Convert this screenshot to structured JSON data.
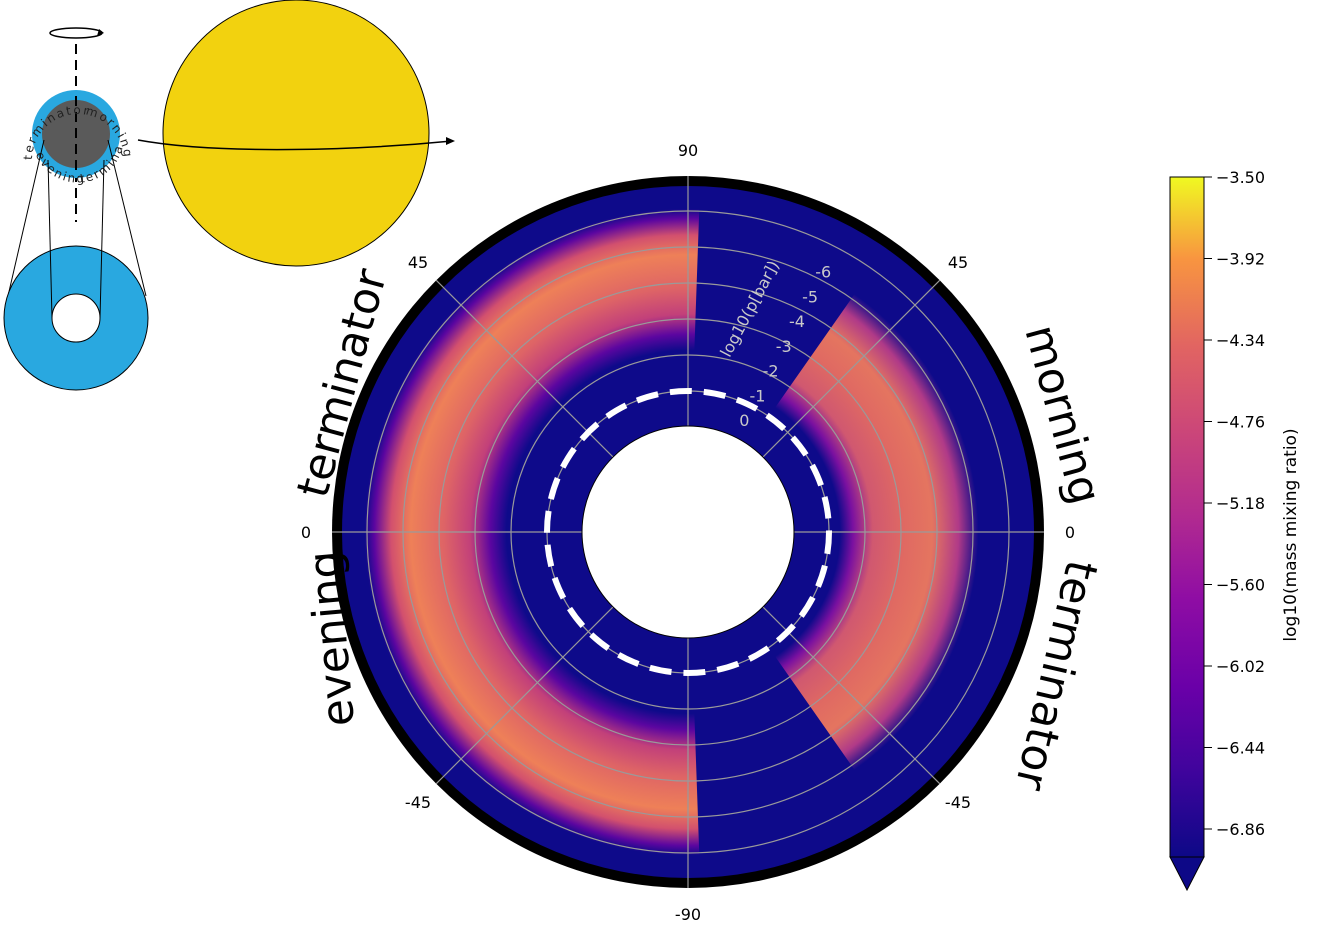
{
  "chart_data": {
    "type": "heatmap",
    "projection": "polar",
    "angle_ticks": [
      "90",
      "45",
      "45",
      "0",
      "0",
      "-45",
      "-45",
      "-90"
    ],
    "radial_axis_label": "log10(p[bar])",
    "radial_ticks": [
      "0",
      "-1",
      "-2",
      "-3",
      "-4",
      "-5",
      "-6"
    ],
    "side_labels": {
      "upper_left": "terminator",
      "lower_left": "evening",
      "upper_right": "morning",
      "lower_right": "terminator"
    },
    "colorbar": {
      "label": "log10(mass mixing ratio)",
      "ticks": [
        "−3.50",
        "−3.92",
        "−4.34",
        "−4.76",
        "−5.18",
        "−5.60",
        "−6.02",
        "−6.44",
        "−6.86"
      ],
      "range": [
        -6.86,
        -3.5
      ],
      "extend": "min",
      "colormap": "plasma"
    },
    "dashed_reference_level": -1,
    "inset": {
      "arc_labels": [
        "terminator",
        "morning",
        "terminator",
        "evening"
      ],
      "colors": {
        "planet_band": "#29a8e0",
        "planet_core": "#5a5a5a",
        "star": "#f2d20f"
      }
    },
    "colors": {
      "background": "#0e0a8a",
      "grid": "#9a9a9a",
      "rim": "#000000"
    }
  }
}
